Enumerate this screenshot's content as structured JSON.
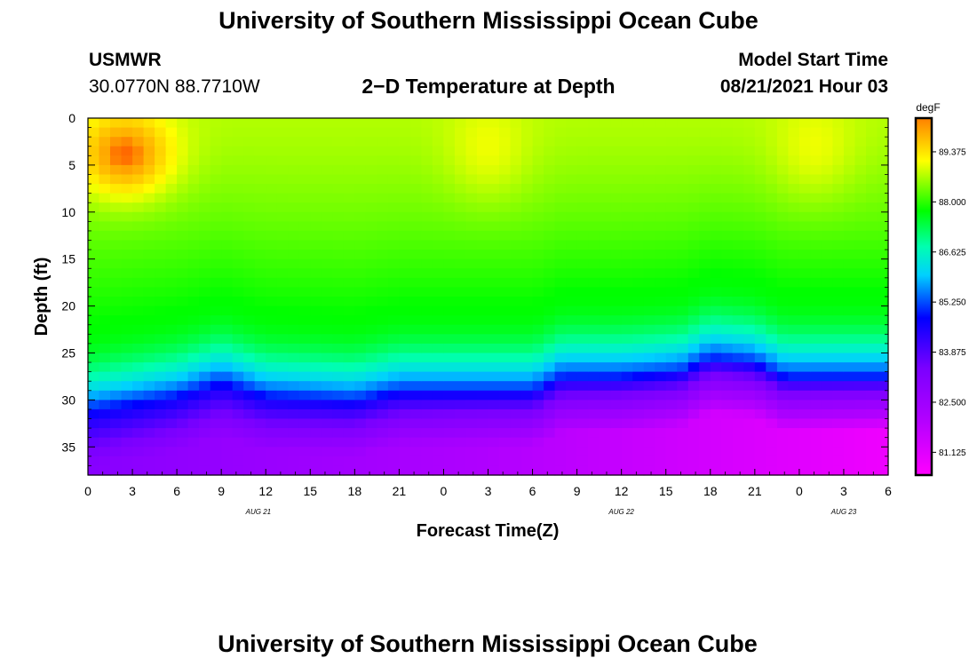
{
  "header": {
    "title": "University of Southern Mississippi Ocean Cube",
    "footer_title": "University of Southern Mississippi Ocean Cube",
    "station": "USMWR",
    "coordinates": "30.0770N  88.7710W",
    "plot_title": "2−D Temperature at Depth",
    "model_start_label": "Model Start Time",
    "model_start_value": "08/21/2021 Hour 03"
  },
  "chart_data": {
    "type": "heatmap",
    "title": "2−D Temperature at Depth",
    "xlabel": "Forecast Time(Z)",
    "ylabel": "Depth (ft)",
    "x_range_hours": [
      0,
      54
    ],
    "y_range_ft": [
      0,
      38
    ],
    "x_ticks": [
      {
        "h": 0,
        "label": "0"
      },
      {
        "h": 3,
        "label": "3"
      },
      {
        "h": 6,
        "label": "6"
      },
      {
        "h": 9,
        "label": "9"
      },
      {
        "h": 12,
        "label": "12"
      },
      {
        "h": 15,
        "label": "15"
      },
      {
        "h": 18,
        "label": "18"
      },
      {
        "h": 21,
        "label": "21"
      },
      {
        "h": 24,
        "label": "0"
      },
      {
        "h": 27,
        "label": "3"
      },
      {
        "h": 30,
        "label": "6"
      },
      {
        "h": 33,
        "label": "9"
      },
      {
        "h": 36,
        "label": "12"
      },
      {
        "h": 39,
        "label": "15"
      },
      {
        "h": 42,
        "label": "18"
      },
      {
        "h": 45,
        "label": "21"
      },
      {
        "h": 48,
        "label": "0"
      },
      {
        "h": 51,
        "label": "3"
      },
      {
        "h": 54,
        "label": "6"
      }
    ],
    "y_ticks": [
      {
        "v": 0,
        "label": "0"
      },
      {
        "v": 5,
        "label": "5"
      },
      {
        "v": 10,
        "label": "10"
      },
      {
        "v": 15,
        "label": "15"
      },
      {
        "v": 20,
        "label": "20"
      },
      {
        "v": 25,
        "label": "25"
      },
      {
        "v": 30,
        "label": "30"
      },
      {
        "v": 35,
        "label": "35"
      }
    ],
    "date_labels": [
      {
        "h": 11.5,
        "label": "AUG  21"
      },
      {
        "h": 36,
        "label": "AUG  22"
      },
      {
        "h": 51,
        "label": "AUG  23"
      }
    ],
    "colorbar": {
      "unit": "degF",
      "min": 80.5,
      "max": 90.3,
      "ticks": [
        {
          "v": 89.375,
          "label": "89.375"
        },
        {
          "v": 88.0,
          "label": "88.000"
        },
        {
          "v": 86.625,
          "label": "86.625"
        },
        {
          "v": 85.25,
          "label": "85.250"
        },
        {
          "v": 83.875,
          "label": "83.875"
        },
        {
          "v": 82.5,
          "label": "82.500"
        },
        {
          "v": 81.125,
          "label": "81.125"
        }
      ]
    },
    "field_description": {
      "surface_temp_degF": 88.6,
      "warm_cores": [
        {
          "h": 2.5,
          "depth": 4,
          "peak_degF": 90.1
        },
        {
          "h": 27,
          "depth": 4,
          "peak_degF": 89.0
        },
        {
          "h": 49,
          "depth": 4,
          "peak_degF": 89.0
        }
      ],
      "thermocline_depth_ft": [
        {
          "h": 0,
          "depth": 31
        },
        {
          "h": 6,
          "depth": 29.5
        },
        {
          "h": 9,
          "depth": 28
        },
        {
          "h": 12,
          "depth": 29.5
        },
        {
          "h": 18,
          "depth": 30
        },
        {
          "h": 21,
          "depth": 29
        },
        {
          "h": 24,
          "depth": 29
        },
        {
          "h": 30,
          "depth": 29
        },
        {
          "h": 32,
          "depth": 27.5
        },
        {
          "h": 36,
          "depth": 27.5
        },
        {
          "h": 40,
          "depth": 27
        },
        {
          "h": 42,
          "depth": 25.5
        },
        {
          "h": 45,
          "depth": 26
        },
        {
          "h": 47,
          "depth": 27.5
        },
        {
          "h": 54,
          "depth": 27.5
        }
      ],
      "bottom_temp_start_degF": 83.2,
      "bottom_temp_end_degF": 80.8
    }
  }
}
